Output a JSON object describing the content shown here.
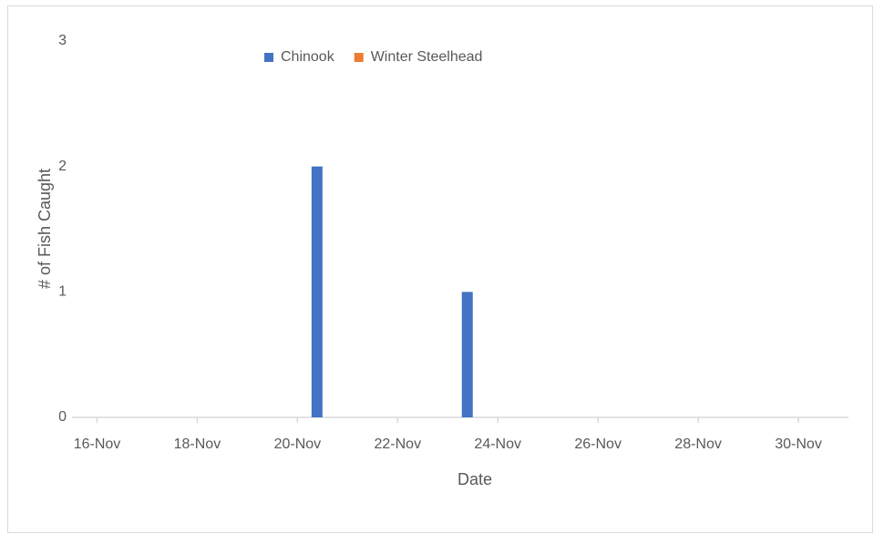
{
  "chart_data": {
    "type": "bar",
    "xlabel": "Date",
    "ylabel": "# of Fish Caught",
    "x": [
      20,
      23
    ],
    "series": [
      {
        "name": "Chinook",
        "color": "#4472c4",
        "values": [
          2,
          1
        ]
      },
      {
        "name": "Winter Steelhead",
        "color": "#ed7d31",
        "values": [
          0,
          0
        ]
      }
    ],
    "xlim": [
      15.5,
      31
    ],
    "xticks": [
      {
        "value": 16,
        "label": "16-Nov"
      },
      {
        "value": 18,
        "label": "18-Nov"
      },
      {
        "value": 20,
        "label": "20-Nov"
      },
      {
        "value": 22,
        "label": "22-Nov"
      },
      {
        "value": 24,
        "label": "24-Nov"
      },
      {
        "value": 26,
        "label": "26-Nov"
      },
      {
        "value": 28,
        "label": "28-Nov"
      },
      {
        "value": 30,
        "label": "30-Nov"
      }
    ],
    "ylim": [
      0,
      3
    ],
    "yticks": [
      0,
      1,
      2,
      3
    ],
    "grid": false,
    "legend": "top"
  }
}
